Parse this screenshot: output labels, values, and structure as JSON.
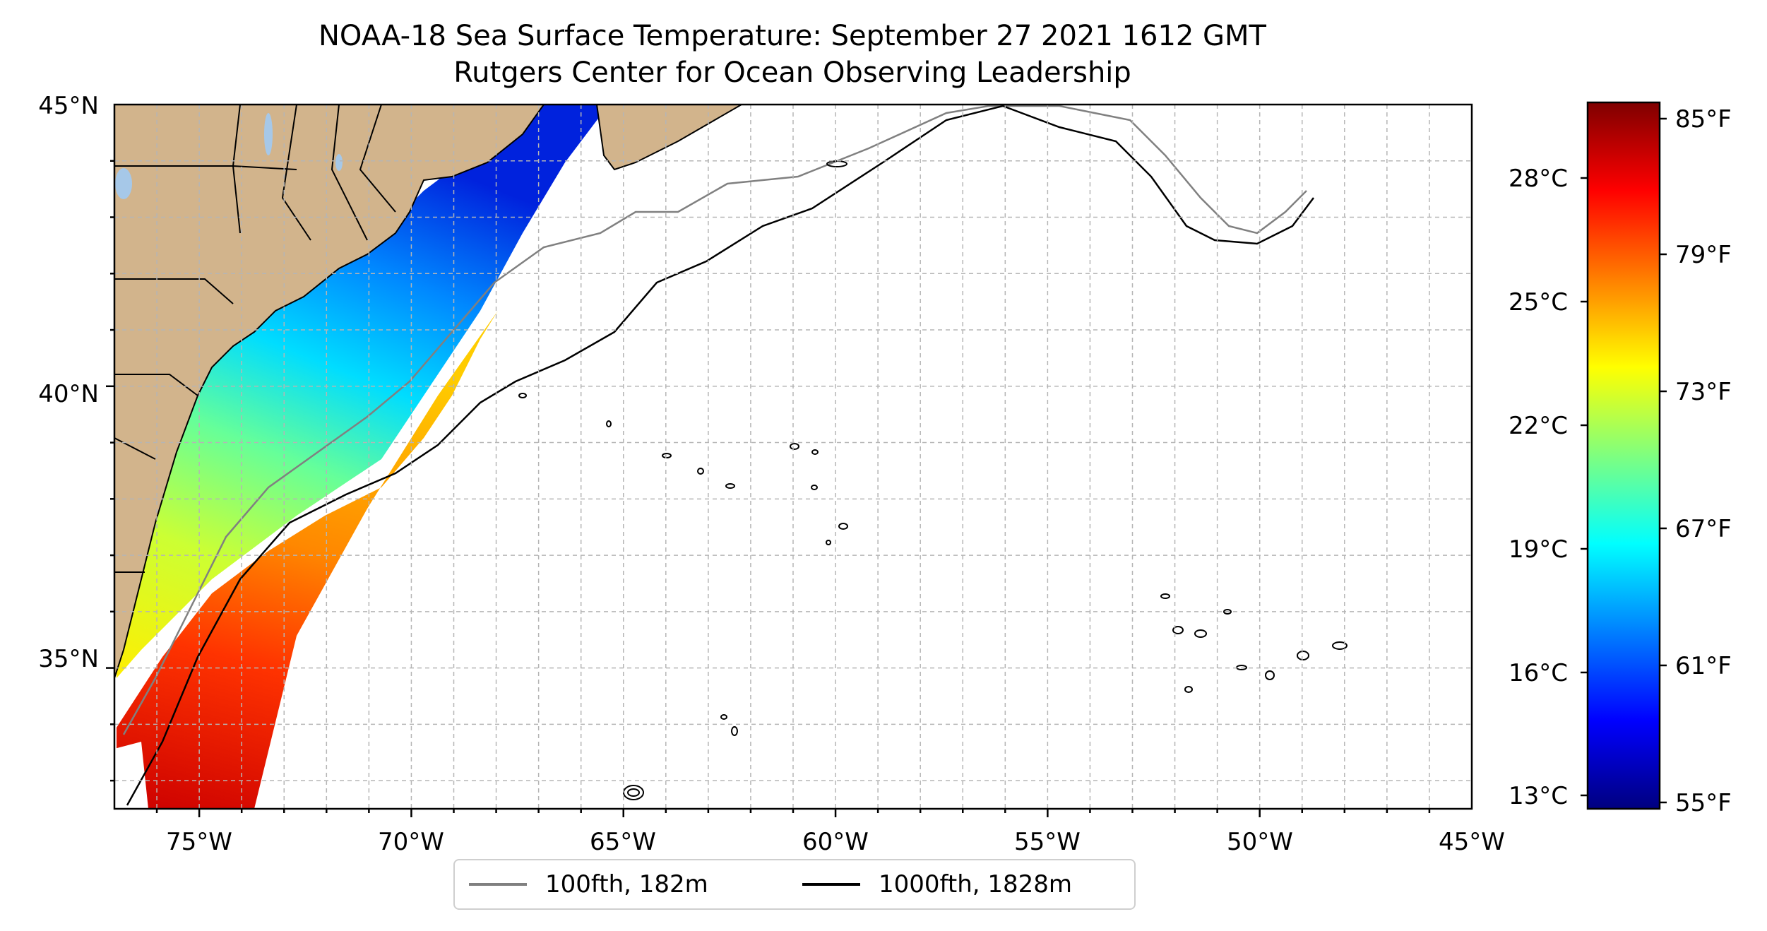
{
  "title_line1": "NOAA-18 Sea Surface Temperature: September 27 2021 1612 GMT",
  "title_line2": "Rutgers Center for Ocean Observing Leadership",
  "map": {
    "lon_range": [
      -77,
      -45
    ],
    "lat_range": [
      32.5,
      45
    ],
    "lat_ticks": [
      "45°N",
      "40°N",
      "35°N"
    ],
    "lon_ticks": [
      "75°W",
      "70°W",
      "65°W",
      "60°W",
      "55°W",
      "50°W",
      "45°W"
    ],
    "land_color": "#d2b48c",
    "gridlines": true
  },
  "colorbar": {
    "celsius_ticks": [
      "28°C",
      "25°C",
      "22°C",
      "19°C",
      "16°C",
      "13°C"
    ],
    "fahrenheit_ticks": [
      "85°F",
      "79°F",
      "73°F",
      "67°F",
      "61°F",
      "55°F"
    ],
    "colormap": "jet",
    "colors": [
      "#00007f",
      "#0000ff",
      "#007fff",
      "#00ffff",
      "#7fff7f",
      "#ffff00",
      "#ff7f00",
      "#ff0000",
      "#7f0000"
    ]
  },
  "legend": {
    "items": [
      {
        "label": "100fth, 182m",
        "color": "#808080"
      },
      {
        "label": "1000fth, 1828m",
        "color": "#000000"
      }
    ]
  }
}
